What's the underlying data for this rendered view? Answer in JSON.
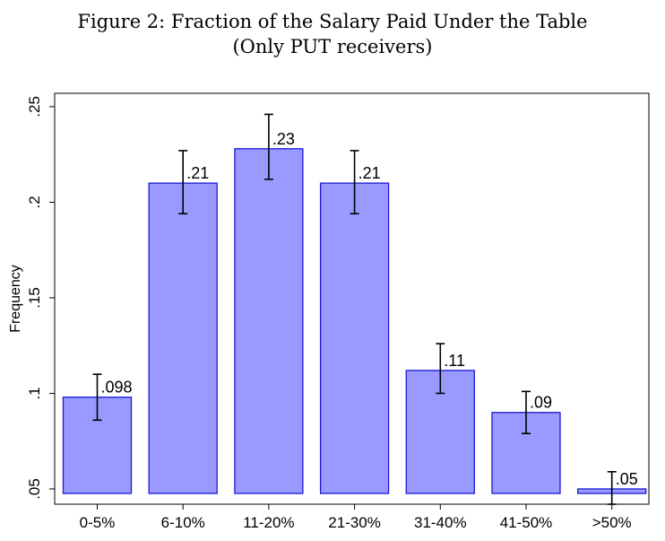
{
  "chart_data": {
    "type": "bar",
    "title": "Figure 2: Fraction of the Salary Paid Under the Table",
    "subtitle": "(Only PUT receivers)",
    "xlabel": "",
    "ylabel": "Frequency",
    "categories": [
      "0-5%",
      "6-10%",
      "11-20%",
      "21-30%",
      "31-40%",
      "41-50%",
      ">50%"
    ],
    "values": [
      0.098,
      0.21,
      0.228,
      0.21,
      0.112,
      0.09,
      0.05
    ],
    "value_labels": [
      ".098",
      ".21",
      ".23",
      ".21",
      ".11",
      ".09",
      ".05"
    ],
    "error_low": [
      0.086,
      0.194,
      0.212,
      0.194,
      0.1,
      0.079,
      0.042
    ],
    "error_high": [
      0.11,
      0.227,
      0.246,
      0.227,
      0.126,
      0.101,
      0.059
    ],
    "ylim": [
      0.042,
      0.257
    ],
    "yticks": [
      0.05,
      0.1,
      0.15,
      0.2,
      0.25
    ],
    "ytick_labels": [
      ".05",
      ".1",
      ".15",
      ".2",
      ".25"
    ],
    "grid": false,
    "legend": "none",
    "colors": {
      "bar_fill": "#9999ff",
      "bar_stroke": "#1a1ad6",
      "error_bar": "#000000"
    }
  }
}
